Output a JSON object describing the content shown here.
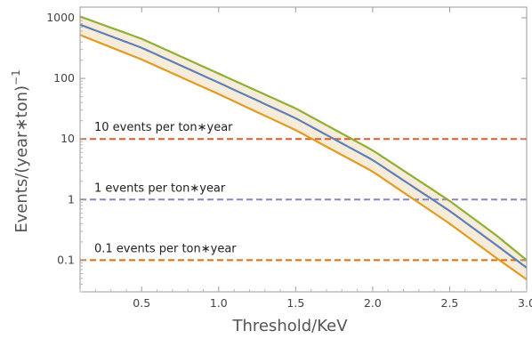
{
  "chart_data": {
    "type": "line",
    "title": "",
    "xlabel": "Threshold/KeV",
    "ylabel_main": "Events/(year∗ton)",
    "ylabel_sup": "−1",
    "xlim": [
      0.1,
      3.0
    ],
    "ylim": [
      0.03,
      1500
    ],
    "y_scale": "log",
    "grid": false,
    "x_ticks": [
      {
        "value": 0.5,
        "label": "0.5"
      },
      {
        "value": 1.0,
        "label": "1.0"
      },
      {
        "value": 1.5,
        "label": "1.5"
      },
      {
        "value": 2.0,
        "label": "2.0"
      },
      {
        "value": 2.5,
        "label": "2.5"
      },
      {
        "value": 3.0,
        "label": "3.0"
      }
    ],
    "y_ticks": [
      {
        "value": 1000,
        "label": "1000"
      },
      {
        "value": 100,
        "label": "100"
      },
      {
        "value": 10,
        "label": "10"
      },
      {
        "value": 1,
        "label": "1"
      },
      {
        "value": 0.1,
        "label": "0.1"
      }
    ],
    "band_fill_color": "#f7ecd9",
    "series": [
      {
        "color": "#8fb032",
        "x": [
          0.1,
          0.5,
          1.0,
          1.5,
          2.0,
          2.5,
          2.8,
          3.0
        ],
        "y": [
          1050,
          450,
          120,
          32,
          6.5,
          0.95,
          0.26,
          0.1
        ]
      },
      {
        "color": "#5e81b5",
        "x": [
          0.1,
          0.5,
          1.0,
          1.5,
          2.0,
          2.5,
          2.8,
          3.0
        ],
        "y": [
          770,
          320,
          85,
          22,
          4.5,
          0.65,
          0.18,
          0.075
        ]
      },
      {
        "color": "#e19c24",
        "x": [
          0.1,
          0.5,
          1.0,
          1.5,
          2.0,
          2.5,
          2.8,
          3.0
        ],
        "y": [
          520,
          205,
          55,
          14,
          2.9,
          0.4,
          0.11,
          0.048
        ]
      }
    ],
    "reference_lines": [
      {
        "y": 10,
        "color": "#e05a2b",
        "label": "10 events per ton∗year"
      },
      {
        "y": 1,
        "color": "#8a84c2",
        "label": "1 events per ton∗year"
      },
      {
        "y": 0.1,
        "color": "#d6700f",
        "label": "0.1 events per ton∗year"
      }
    ]
  }
}
